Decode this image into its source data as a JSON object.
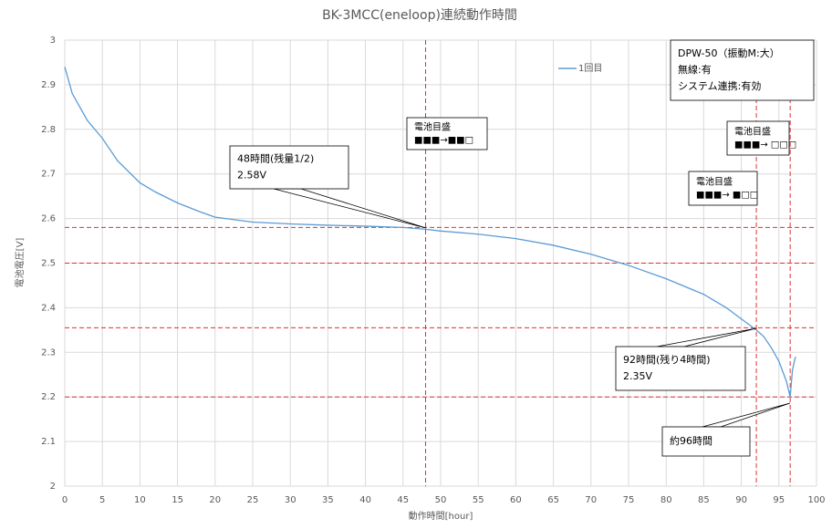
{
  "chart_data": {
    "type": "line",
    "title": "BK-3MCC(eneloop)連続動作時間",
    "x_label": "動作時間[hour]",
    "y_label": "電池電圧[V]",
    "xlim": [
      0,
      100
    ],
    "xticks": [
      0,
      5,
      10,
      15,
      20,
      25,
      30,
      35,
      40,
      45,
      50,
      55,
      60,
      65,
      70,
      75,
      80,
      85,
      90,
      95,
      100
    ],
    "ylim": [
      2,
      3
    ],
    "yticks": [
      2,
      2.1,
      2.2,
      2.3,
      2.4,
      2.5,
      2.6,
      2.7,
      2.8,
      2.9,
      3
    ],
    "grid": true,
    "series": [
      {
        "name": "1回目",
        "color": "#5b9bd5",
        "x": [
          0,
          1,
          2,
          3,
          5,
          7,
          10,
          12,
          15,
          18,
          20,
          25,
          30,
          35,
          40,
          45,
          48,
          50,
          55,
          60,
          65,
          70,
          75,
          80,
          85,
          88,
          90,
          92,
          93,
          94,
          95,
          96,
          96.5,
          96.8,
          97.2
        ],
        "values": [
          2.94,
          2.88,
          2.85,
          2.82,
          2.78,
          2.73,
          2.68,
          2.66,
          2.635,
          2.615,
          2.603,
          2.592,
          2.588,
          2.585,
          2.583,
          2.58,
          2.576,
          2.572,
          2.565,
          2.555,
          2.54,
          2.52,
          2.495,
          2.465,
          2.43,
          2.4,
          2.375,
          2.35,
          2.335,
          2.31,
          2.28,
          2.235,
          2.2,
          2.26,
          2.29
        ]
      }
    ],
    "hlines": [
      2.58,
      2.5,
      2.355,
      2.2
    ],
    "vlines": [
      48,
      92,
      96.5
    ],
    "annotations": [
      {
        "lines": [
          "48時間(残量1/2)",
          "2.58V"
        ]
      },
      {
        "lines": [
          "電池目盛",
          "■■■→■■□"
        ]
      },
      {
        "lines": [
          "電池目盛",
          "■■■→ □□□"
        ]
      },
      {
        "lines": [
          "電池目盛",
          "■■■→ ■□□"
        ]
      },
      {
        "lines": [
          "92時間(残り4時間)",
          "2.35V"
        ]
      },
      {
        "lines": [
          "約96時間"
        ]
      },
      {
        "lines": [
          "DPW-50（振動M:大）",
          "無線:有",
          "システム連携:有効"
        ]
      }
    ]
  }
}
